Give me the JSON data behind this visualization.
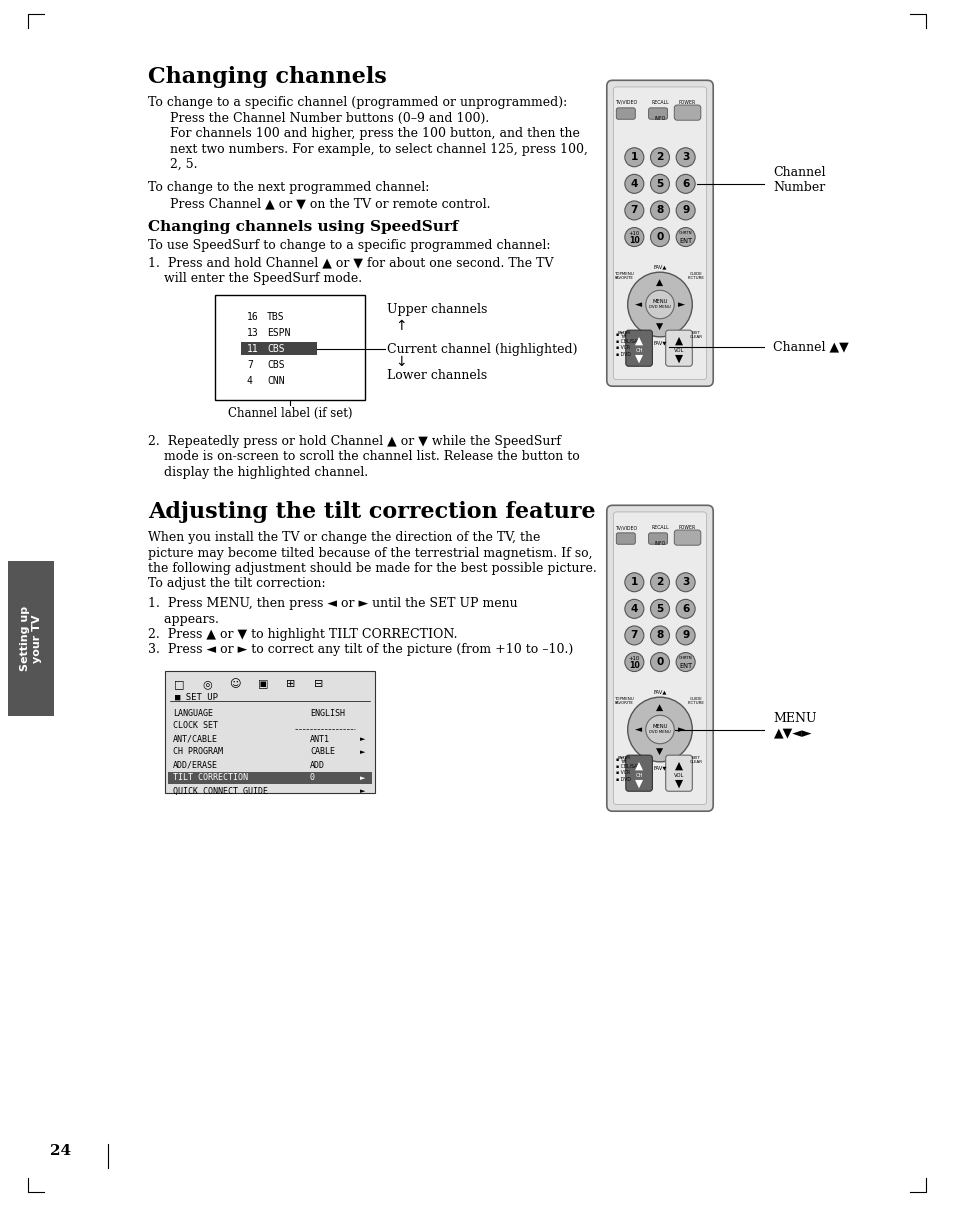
{
  "bg_color": "#ffffff",
  "title1": "Changing channels",
  "title2": "Adjusting the tilt correction feature",
  "page_number": "24",
  "section_label": "Setting up\nyour TV",
  "body_lines_1": [
    [
      "To change to a specific channel (programmed or unprogrammed):",
      0
    ],
    [
      "Press the Channel Number buttons (0–9 and 100).",
      1
    ],
    [
      "For channels 100 and higher, press the 100 button, and then the",
      1
    ],
    [
      "next two numbers. For example, to select channel 125, press 100,",
      1
    ],
    [
      "2, 5.",
      1
    ],
    [
      "",
      0
    ],
    [
      "To change to the next programmed channel:",
      0
    ],
    [
      "Press Channel ▲ or ▼ on the TV or remote control.",
      1
    ]
  ],
  "speedsurf_title": "Changing channels using SpeedSurf",
  "speedsurf_intro": "To use SpeedSurf to change to a specific programmed channel:",
  "speedsurf_step1a": "1.  Press and hold Channel ▲ or ▼ for about one second. The TV",
  "speedsurf_step1b": "    will enter the SpeedSurf mode.",
  "speedsurf_step2a": "2.  Repeatedly press or hold Channel ▲ or ▼ while the SpeedSurf",
  "speedsurf_step2b": "    mode is on-screen to scroll the channel list. Release the button to",
  "speedsurf_step2c": "    display the highlighted channel.",
  "channel_label_caption": "Channel label (if set)",
  "upper_channels_lbl": "Upper channels",
  "current_channel_lbl": "Current channel (highlighted)",
  "lower_channels_lbl": "Lower channels",
  "channel_number_ann": "Channel\nNumber",
  "channel_av_ann": "Channel ▲▼",
  "menu_ann": "MENU\n▲▼◄►",
  "tilt_intro": [
    "When you install the TV or change the direction of the TV, the",
    "picture may become tilted because of the terrestrial magnetism. If so,",
    "the following adjustment should be made for the best possible picture.",
    "To adjust the tilt correction:"
  ],
  "tilt_steps": [
    "1.  Press MENU, then press ◄ or ► until the SET UP menu",
    "    appears.",
    "2.  Press ▲ or ▼ to highlight TILT CORRECTION.",
    "3.  Press ◄ or ► to correct any tilt of the picture (from +10 to –10.)"
  ],
  "channel_list": [
    [
      "16",
      "TBS"
    ],
    [
      "13",
      "ESPN"
    ],
    [
      "11",
      "CBS"
    ],
    [
      "7",
      "CBS"
    ],
    [
      "4",
      "CNN"
    ]
  ],
  "menu_items": [
    [
      "LANGUAGE",
      "ENGLISH",
      false
    ],
    [
      "CLOCK SET",
      "",
      false
    ],
    [
      "ANT/CABLE",
      "ANT1",
      false
    ],
    [
      "CH PROGRAM",
      "CABLE",
      false
    ],
    [
      "ADD/ERASE",
      "ADD",
      false
    ],
    [
      "TILT CORRECTION",
      "0",
      true
    ],
    [
      "QUICK CONNECT GUIDE",
      "",
      false
    ]
  ]
}
